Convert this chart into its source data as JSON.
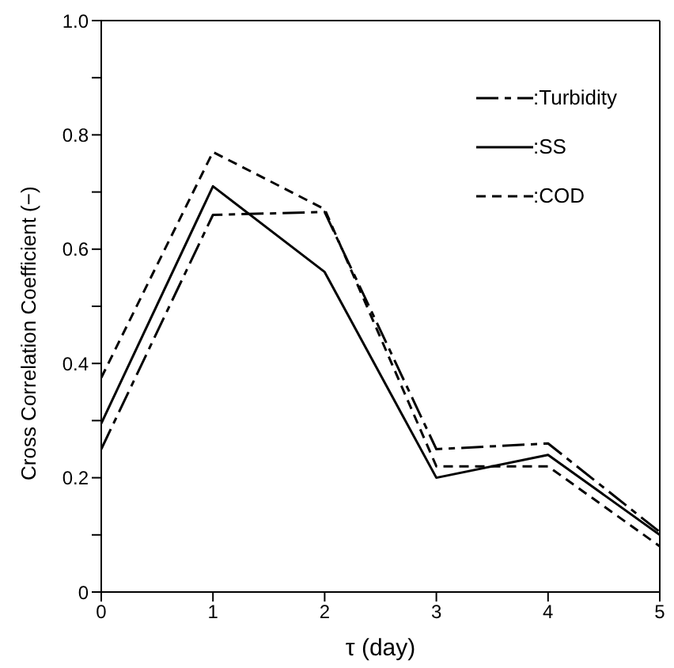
{
  "chart_data": {
    "type": "line",
    "xlabel": "τ (day)",
    "ylabel": "Cross Correlation Coefficient (−)",
    "x": [
      0,
      1,
      2,
      3,
      4,
      5
    ],
    "xlim": [
      0,
      5
    ],
    "xticks": [
      0,
      1,
      2,
      3,
      4,
      5
    ],
    "ylim": [
      0,
      1
    ],
    "yticks": [
      0,
      {
        "value": 0.1,
        "label": null
      },
      0.2,
      {
        "value": 0.3,
        "label": null
      },
      0.4,
      {
        "value": 0.5,
        "label": null
      },
      0.6,
      {
        "value": 0.7,
        "label": null
      },
      0.8,
      {
        "value": 0.9,
        "label": null
      },
      {
        "value": 1,
        "label": "1.0"
      }
    ],
    "grid": false,
    "legend": "top right",
    "marker": "none",
    "series": [
      {
        "name": ":Turbidity",
        "color": "#000000",
        "line_style": "dashed",
        "values": [
          0.25,
          0.66,
          0.665,
          0.25,
          0.26,
          0.105
        ]
      },
      {
        "name": ":SS",
        "color": "#000000",
        "line_style": "solid",
        "values": [
          0.295,
          0.71,
          0.56,
          0.2,
          0.24,
          0.1
        ]
      },
      {
        "name": ":COD",
        "color": "#000000",
        "line_style": "dashed",
        "values": [
          0.375,
          0.77,
          0.67,
          0.22,
          0.22,
          0.08
        ]
      }
    ]
  }
}
